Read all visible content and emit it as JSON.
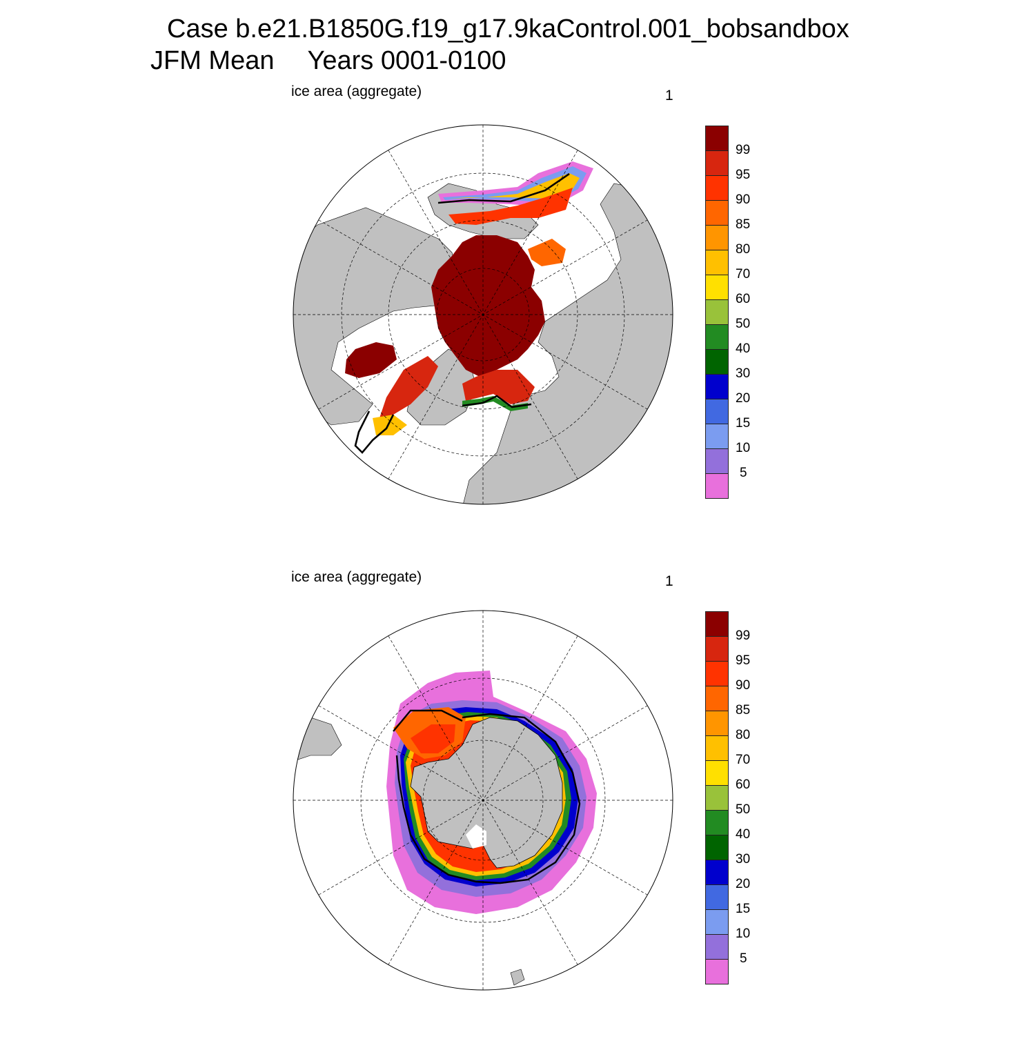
{
  "header": {
    "case_line": "Case b.e21.B1850G.f19_g17.9kaControl.001_bobsandbox",
    "season": "JFM Mean",
    "years": "Years 0001-0100"
  },
  "panels": [
    {
      "hemisphere": "north",
      "label_left": "ice area  (aggregate)",
      "label_right": "1"
    },
    {
      "hemisphere": "south",
      "label_left": "ice area  (aggregate)",
      "label_right": "1"
    }
  ],
  "colorbar": {
    "labels": [
      "99",
      "95",
      "90",
      "85",
      "80",
      "70",
      "60",
      "50",
      "40",
      "30",
      "20",
      "15",
      "10",
      "5"
    ],
    "colors": [
      "#8b0000",
      "#d7260f",
      "#ff3300",
      "#ff6600",
      "#ff9500",
      "#ffc000",
      "#ffe000",
      "#99c23a",
      "#228b22",
      "#006400",
      "#0000cd",
      "#4169e1",
      "#7b9cf0",
      "#9370db",
      "#e870dc"
    ]
  },
  "colors": {
    "land": "#c0c0c0",
    "ocean": "#ffffff",
    "ice_edge_line": "#000000"
  }
}
